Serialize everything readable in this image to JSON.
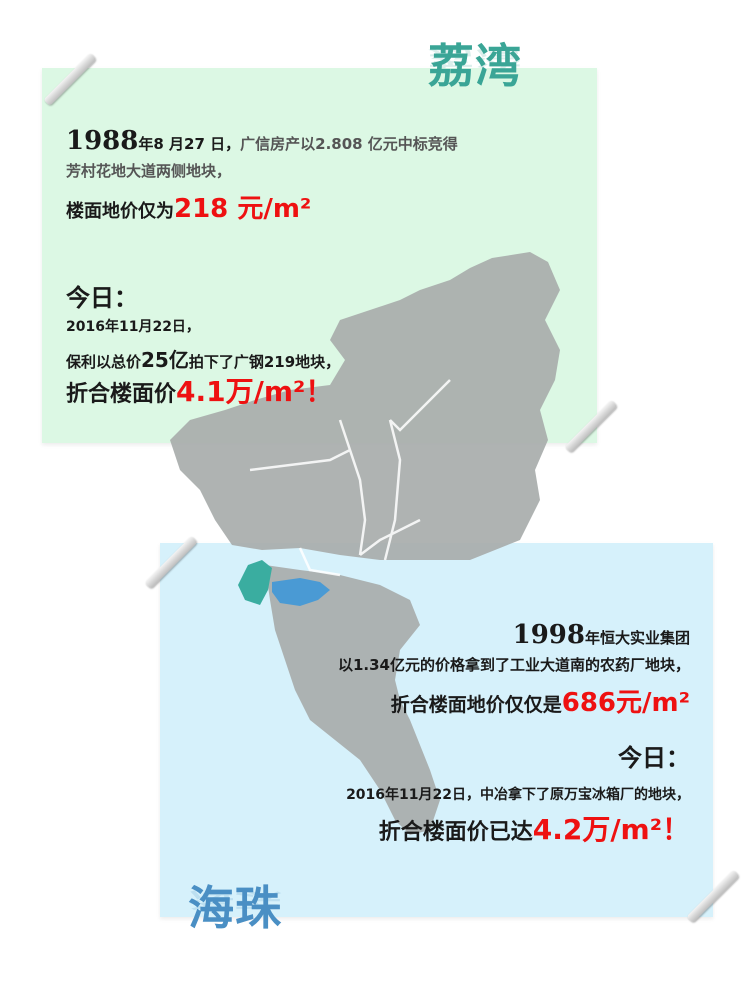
{
  "liwan": {
    "district": "荔湾",
    "line1_year": "1988",
    "line1_date": "年8 月27 日，",
    "line1_rest": "广信房产以2.808 亿元中标竞得",
    "line2": "芳村花地大道两侧地块，",
    "line3_prefix": "楼面地价仅为",
    "line3_price": "218 元/m²",
    "today": "今日：",
    "today_date": "2016年11月22日，",
    "today_line_prefix": "保利以总价",
    "today_line_amount": "25亿",
    "today_line_rest": "拍下了广钢219地块，",
    "today_price_prefix": "折合楼面价",
    "today_price": "4.1万/m²！"
  },
  "haizhu": {
    "district": "海珠",
    "line1_year": "1998",
    "line1_rest": "年恒大实业集团",
    "line2": "以1.34亿元的价格拿到了工业大道南的农药厂地块，",
    "line3_prefix": "折合楼面地价仅仅是",
    "line3_price": "686元/m²",
    "today": "今日：",
    "today_line": "2016年11月22日，中冶拿下了原万宝冰箱厂的地块，",
    "today_price_prefix": "折合楼面价已达",
    "today_price": "4.2万/m²！"
  },
  "colors": {
    "green_card": "#dcf8e4",
    "blue_card": "#d6f1fb",
    "map_gray": "#a8adab",
    "liwan_teal": "#3aada0",
    "haizhu_blue": "#4a9ad4",
    "price_red": "#ee1111",
    "liwan_title": "#3aa596",
    "haizhu_title": "#4a8fc4"
  }
}
